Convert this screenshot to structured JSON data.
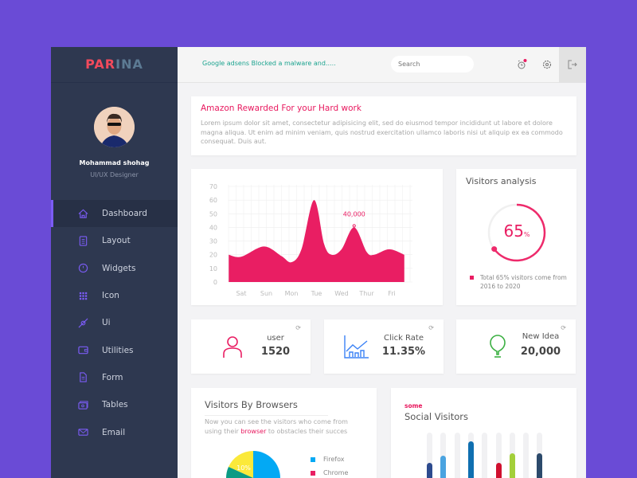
{
  "sidebar": {
    "logo_part1": "PAR",
    "logo_part2": "INA",
    "user_name": "Mohammad shohag",
    "user_role": "UI/UX Designer",
    "items": [
      {
        "label": "Dashboard",
        "icon": "home-icon"
      },
      {
        "label": "Layout",
        "icon": "layout-icon"
      },
      {
        "label": "Widgets",
        "icon": "widgets-icon"
      },
      {
        "label": "Icon",
        "icon": "grid-icon"
      },
      {
        "label": "Ui",
        "icon": "compass-icon"
      },
      {
        "label": "Utilities",
        "icon": "wallet-icon"
      },
      {
        "label": "Form",
        "icon": "form-icon"
      },
      {
        "label": "Tables",
        "icon": "tables-icon"
      },
      {
        "label": "Email",
        "icon": "email-icon"
      }
    ]
  },
  "header": {
    "notification": "Google adsens Blocked a malware and.....",
    "search_placeholder": "Search"
  },
  "notice": {
    "title": "Amazon Rewarded For your Hard work",
    "body": "Lorem ipsum dolor sit amet, consectetur adipisicing elit, sed do eiusmod tempor incididunt ut labore et dolore magna aliqua. Ut enim ad minim veniam, quis nostrud exercitation ullamco laboris nisi ut aliquip ex ea commodo consequat. Duis aut."
  },
  "chart_data": {
    "type": "area",
    "categories": [
      "Sat",
      "Sun",
      "Mon",
      "Tue",
      "Wed",
      "Thur",
      "Fri"
    ],
    "yticks": [
      0,
      10,
      20,
      30,
      40,
      50,
      60,
      70
    ],
    "ylim": [
      0,
      70
    ],
    "points": [
      [
        -0.5,
        20
      ],
      [
        0,
        18.5
      ],
      [
        0.9,
        26
      ],
      [
        1.6,
        19
      ],
      [
        2,
        14.5
      ],
      [
        2.4,
        24
      ],
      [
        2.9,
        60
      ],
      [
        3.3,
        28
      ],
      [
        3.6,
        20
      ],
      [
        4.0,
        24
      ],
      [
        4.5,
        40
      ],
      [
        5.0,
        22
      ],
      [
        5.3,
        20
      ],
      [
        5.9,
        24
      ],
      [
        6.5,
        20
      ]
    ],
    "annotation": {
      "label": "40,000",
      "x": 4.5,
      "y": 40
    },
    "color": "#e91e63"
  },
  "visitors": {
    "title": "Visitors analysis",
    "percent": 65,
    "value": "65",
    "unit": "%",
    "legend": "Total 65% visitors come from 2016 to 2020"
  },
  "stats": [
    {
      "label": "user",
      "value": "1520"
    },
    {
      "label": "Click Rate",
      "value": "11.35%"
    },
    {
      "label": "New Idea",
      "value": "20,000"
    }
  ],
  "browsers": {
    "title": "Visitors By Browsers",
    "desc_before": "Now you can see the visitors who come from using their ",
    "desc_link": "browser",
    "desc_after": " to obstacles their succes",
    "legend": [
      {
        "label": "Firefox",
        "color": "#03a9f4"
      },
      {
        "label": "Chrome",
        "color": "#e91e63"
      }
    ],
    "slice_label": "10%"
  },
  "social": {
    "kicker": "some",
    "title": "Social Visitors",
    "bars": [
      {
        "value": 0.34,
        "color": "#2d4b8e"
      },
      {
        "value": 0.5,
        "color": "#4aa3e0"
      },
      {
        "value": 0,
        "color": "#ccc"
      },
      {
        "value": 0.8,
        "color": "#0f6fb0"
      },
      {
        "value": 0,
        "color": "#ccc"
      },
      {
        "value": 0.33,
        "color": "#d0102f"
      },
      {
        "value": 0.55,
        "color": "#a3cf3a"
      },
      {
        "value": 0,
        "color": "#ccc"
      },
      {
        "value": 0.54,
        "color": "#2c4a6b"
      }
    ]
  }
}
